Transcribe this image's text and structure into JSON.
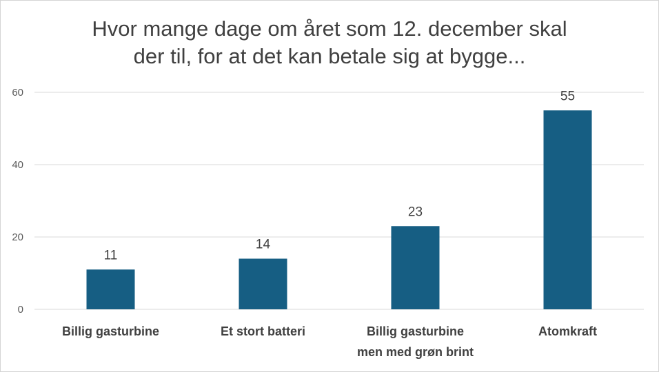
{
  "chart_data": {
    "type": "bar",
    "title_lines": [
      "Hvor mange dage om året som 12. december skal",
      "der til, for at det kan betale sig at bygge..."
    ],
    "categories": [
      [
        "Billig gasturbine"
      ],
      [
        "Et stort batteri"
      ],
      [
        "Billig gasturbine",
        "men med grøn brint"
      ],
      [
        "Atomkraft"
      ]
    ],
    "values": [
      11,
      14,
      23,
      55
    ],
    "ylim": [
      0,
      60
    ],
    "yticks": [
      "0",
      "20",
      "40",
      "60"
    ],
    "grid": true,
    "bar_color": "#165e83",
    "grid_color": "#d9d9d9"
  }
}
